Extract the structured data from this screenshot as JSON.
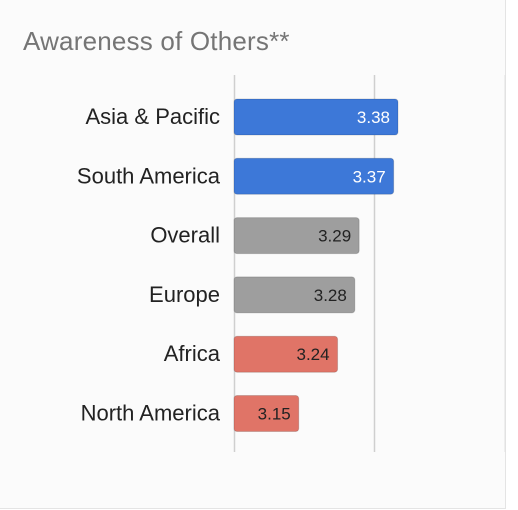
{
  "chart_data": {
    "type": "bar",
    "orientation": "horizontal",
    "title": "Awareness of Others**",
    "categories": [
      "Asia & Pacific",
      "South America",
      "Overall",
      "Europe",
      "Africa",
      "North America"
    ],
    "values": [
      3.38,
      3.37,
      3.29,
      3.28,
      3.24,
      3.15
    ],
    "value_labels": [
      "3.38",
      "3.37",
      "3.29",
      "3.28",
      "3.24",
      "3.15"
    ],
    "bar_colors": [
      "#3d78d8",
      "#3d78d8",
      "#9e9e9e",
      "#9e9e9e",
      "#e07467",
      "#e07467"
    ],
    "value_label_colors": [
      "#ffffff",
      "#ffffff",
      "#222222",
      "#222222",
      "#222222",
      "#222222"
    ],
    "xlim": [
      2.5,
      3.5
    ],
    "reference_lines": [
      3.25
    ],
    "grid": true,
    "legend": "none"
  }
}
